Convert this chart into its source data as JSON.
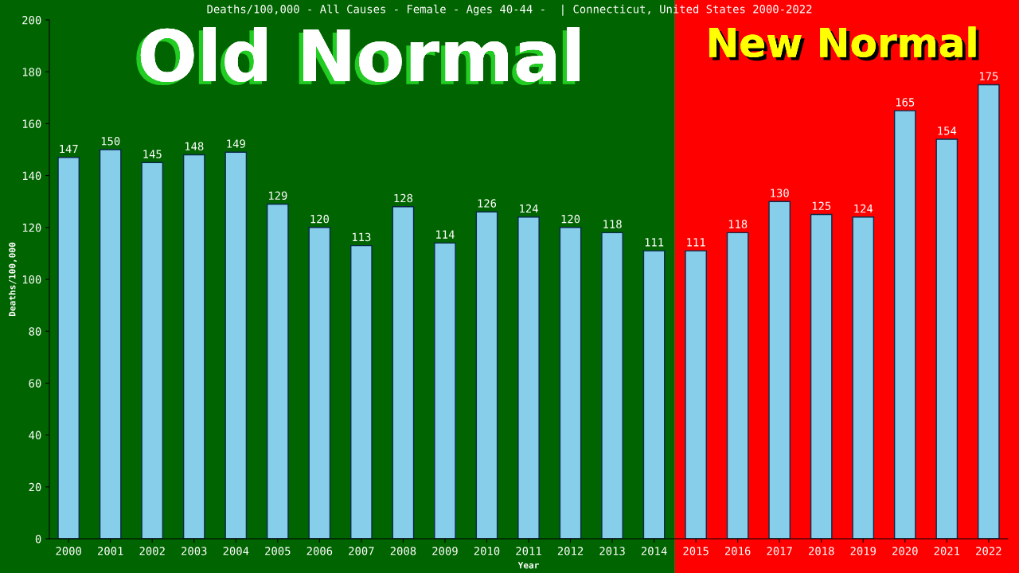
{
  "chart_data": {
    "type": "bar",
    "title": "Deaths/100,000 - All Causes - Female - Ages 40-44 -  | Connecticut, United States 2000-2022",
    "xlabel": "Year",
    "ylabel": "Deaths/100,000",
    "categories": [
      "2000",
      "2001",
      "2002",
      "2003",
      "2004",
      "2005",
      "2006",
      "2007",
      "2008",
      "2009",
      "2010",
      "2011",
      "2012",
      "2013",
      "2014",
      "2015",
      "2016",
      "2017",
      "2018",
      "2019",
      "2020",
      "2021",
      "2022"
    ],
    "values": [
      147,
      150,
      145,
      148,
      149,
      129,
      120,
      113,
      128,
      114,
      126,
      124,
      120,
      118,
      111,
      111,
      118,
      130,
      125,
      124,
      165,
      154,
      175
    ],
    "color": "#87ceeb",
    "data_labels": true,
    "ylim": [
      0,
      200
    ],
    "yticks": [
      0,
      20,
      40,
      60,
      80,
      100,
      120,
      140,
      160,
      180,
      200
    ],
    "grid": false,
    "legend": false,
    "bands": [
      {
        "axis": "x",
        "from": "2000",
        "to": "2014",
        "label": "Old Normal",
        "color": "#006400"
      },
      {
        "axis": "x",
        "from": "2015",
        "to": "2022",
        "label": "New Normal",
        "color": "#ff0000"
      }
    ]
  }
}
